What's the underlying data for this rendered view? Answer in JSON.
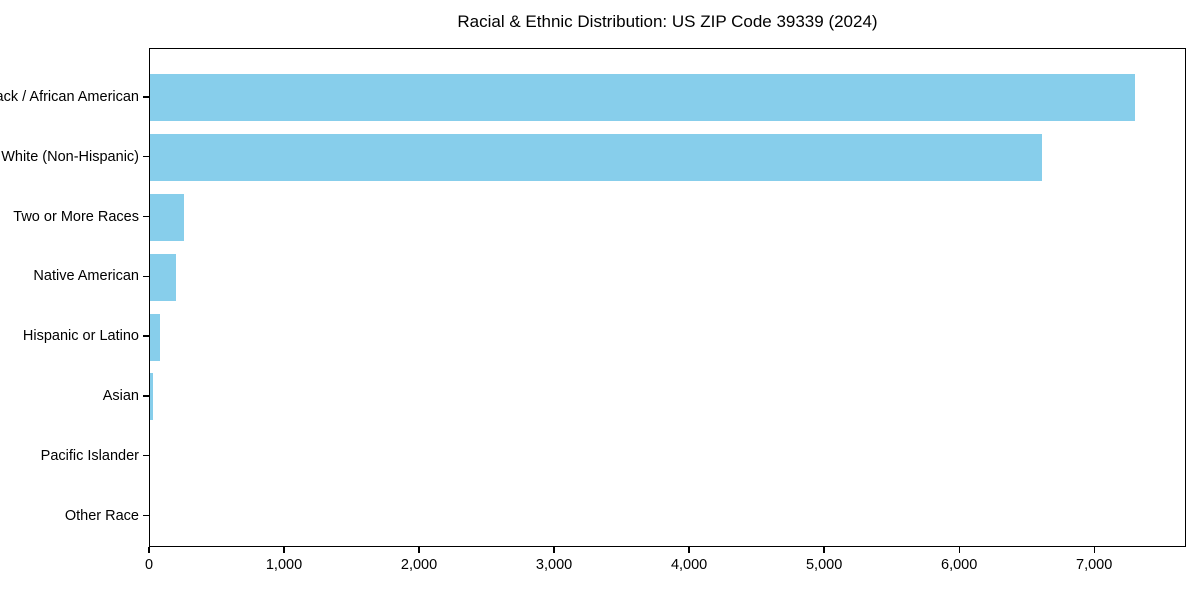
{
  "chart_data": {
    "type": "bar",
    "orientation": "horizontal",
    "title": "Racial & Ethnic Distribution: US ZIP Code 39339 (2024)",
    "categories": [
      "Black / African American",
      "White (Non-Hispanic)",
      "Two or More Races",
      "Native American",
      "Hispanic or Latino",
      "Asian",
      "Pacific Islander",
      "Other Race"
    ],
    "values": [
      7310,
      6620,
      250,
      190,
      75,
      25,
      0,
      0
    ],
    "xlabel": "",
    "ylabel": "",
    "xlim": [
      0,
      7680
    ],
    "xticks": {
      "values": [
        0,
        1000,
        2000,
        3000,
        4000,
        5000,
        6000,
        7000
      ],
      "labels": [
        "0",
        "1,000",
        "2,000",
        "3,000",
        "4,000",
        "5,000",
        "6,000",
        "7,000"
      ]
    },
    "bar_color": "#87CEEB",
    "spine_color": "#000000",
    "background": "#ffffff",
    "grid": false,
    "legend": "none"
  }
}
